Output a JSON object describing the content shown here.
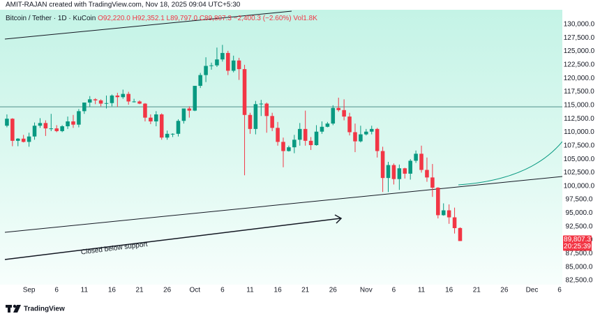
{
  "header": {
    "credit": "AMIT-RAJAN created with TradingView.com, Nov 18, 2025 09:04 UTC+5:30",
    "symbol": "Bitcoin / Tether · 1D · KuCoin",
    "ohlc": [
      "O92,220.0",
      "H92,352.1",
      "L89,797.0",
      "C89,807.3",
      "−2,400.3 (−2.60%)"
    ],
    "volume": "Vol1.8K"
  },
  "chart_data": {
    "type": "candlestick",
    "up_color": "#089981",
    "down_color": "#f23645",
    "x": [
      "2025-08-28",
      "2025-08-29",
      "2025-08-30",
      "2025-08-31",
      "2025-09-01",
      "2025-09-02",
      "2025-09-03",
      "2025-09-04",
      "2025-09-05",
      "2025-09-06",
      "2025-09-07",
      "2025-09-08",
      "2025-09-09",
      "2025-09-10",
      "2025-09-11",
      "2025-09-12",
      "2025-09-13",
      "2025-09-14",
      "2025-09-15",
      "2025-09-16",
      "2025-09-17",
      "2025-09-18",
      "2025-09-19",
      "2025-09-20",
      "2025-09-21",
      "2025-09-22",
      "2025-09-23",
      "2025-09-24",
      "2025-09-25",
      "2025-09-26",
      "2025-09-27",
      "2025-09-28",
      "2025-09-29",
      "2025-09-30",
      "2025-10-01",
      "2025-10-02",
      "2025-10-03",
      "2025-10-04",
      "2025-10-05",
      "2025-10-06",
      "2025-10-07",
      "2025-10-08",
      "2025-10-09",
      "2025-10-10",
      "2025-10-11",
      "2025-10-12",
      "2025-10-13",
      "2025-10-14",
      "2025-10-15",
      "2025-10-16",
      "2025-10-17",
      "2025-10-18",
      "2025-10-19",
      "2025-10-20",
      "2025-10-21",
      "2025-10-22",
      "2025-10-23",
      "2025-10-24",
      "2025-10-25",
      "2025-10-26",
      "2025-10-27",
      "2025-10-28",
      "2025-10-29",
      "2025-10-30",
      "2025-10-31",
      "2025-11-01",
      "2025-11-02",
      "2025-11-03",
      "2025-11-04",
      "2025-11-05",
      "2025-11-06",
      "2025-11-07",
      "2025-11-08",
      "2025-11-09",
      "2025-11-10",
      "2025-11-11",
      "2025-11-12",
      "2025-11-13",
      "2025-11-14",
      "2025-11-15",
      "2025-11-16",
      "2025-11-17",
      "2025-11-18"
    ],
    "open": [
      111200,
      112500,
      108400,
      108800,
      108200,
      109200,
      111200,
      111700,
      110700,
      110700,
      110200,
      111100,
      112000,
      111400,
      113900,
      115500,
      116100,
      115900,
      115300,
      115400,
      116800,
      116500,
      117100,
      115700,
      115700,
      115300,
      112700,
      112000,
      113300,
      109000,
      109700,
      109700,
      112100,
      114400,
      114000,
      118600,
      120600,
      122300,
      122400,
      123500,
      124700,
      121400,
      123300,
      121700,
      113200,
      110600,
      115200,
      115300,
      113000,
      110800,
      108200,
      106500,
      107200,
      108600,
      110600,
      108400,
      107600,
      110100,
      111000,
      111600,
      114500,
      114100,
      112900,
      110000,
      108300,
      109600,
      110100,
      110600,
      106500,
      101500,
      103900,
      101300,
      103300,
      102300,
      104700,
      106000,
      103000,
      101600,
      99700,
      94600,
      95500,
      94200,
      92220.0
    ],
    "high": [
      113300,
      112600,
      108900,
      109500,
      109900,
      111800,
      112600,
      112200,
      113400,
      111300,
      111300,
      112900,
      113200,
      114300,
      115500,
      116700,
      116300,
      116100,
      116800,
      117000,
      117300,
      117900,
      117500,
      116200,
      115900,
      115400,
      113300,
      113900,
      113500,
      110300,
      109800,
      112400,
      114400,
      114800,
      118600,
      121000,
      123900,
      122900,
      125700,
      126200,
      125100,
      124200,
      123800,
      122500,
      113600,
      115800,
      116000,
      115500,
      113600,
      111900,
      109000,
      107500,
      109500,
      111700,
      114000,
      109100,
      111300,
      112000,
      111900,
      115000,
      116400,
      116100,
      113600,
      111600,
      111200,
      110600,
      111200,
      110800,
      107300,
      104500,
      104200,
      104000,
      103400,
      105000,
      106600,
      107500,
      105300,
      104100,
      99800,
      96800,
      96600,
      96000,
      92352.1
    ],
    "low": [
      110900,
      107400,
      107400,
      108100,
      107300,
      108600,
      110800,
      109300,
      110200,
      110000,
      110000,
      110600,
      110800,
      110900,
      113400,
      114700,
      115200,
      114800,
      114400,
      114800,
      114700,
      116200,
      115100,
      115500,
      115200,
      112000,
      111500,
      111100,
      108600,
      108600,
      109100,
      109200,
      111600,
      112700,
      113900,
      118200,
      119300,
      121600,
      122100,
      123100,
      120600,
      121100,
      119700,
      102000,
      109700,
      109600,
      113000,
      109900,
      110200,
      107500,
      103500,
      106400,
      106100,
      107500,
      107500,
      106700,
      107500,
      109700,
      110900,
      111300,
      113800,
      112200,
      109400,
      106300,
      108100,
      109400,
      109600,
      105300,
      98900,
      98900,
      100300,
      99300,
      101400,
      101200,
      104300,
      102500,
      100800,
      98000,
      94000,
      94500,
      93000,
      91200,
      89797.0
    ],
    "close": [
      112500,
      108400,
      108800,
      108200,
      109200,
      111200,
      111700,
      110700,
      110700,
      110200,
      111100,
      112000,
      111400,
      113900,
      115500,
      116100,
      115900,
      115300,
      115400,
      116800,
      116500,
      117100,
      115700,
      115700,
      115300,
      112700,
      112000,
      113300,
      109000,
      109700,
      109700,
      112100,
      114400,
      114000,
      118600,
      120600,
      122300,
      122400,
      123500,
      124700,
      121400,
      123300,
      121700,
      113200,
      110600,
      115200,
      115300,
      113000,
      110800,
      108200,
      106500,
      107200,
      108600,
      110600,
      108400,
      107600,
      110100,
      111000,
      111600,
      114500,
      114100,
      112900,
      110000,
      108300,
      109600,
      110100,
      110600,
      106500,
      101500,
      103900,
      101300,
      103300,
      102300,
      104700,
      106000,
      103000,
      101600,
      99700,
      94600,
      95500,
      94200,
      92200,
      89807.3
    ],
    "xlim": [
      "2025-08-27",
      "2025-12-07"
    ],
    "xticks": [
      {
        "value": "2025-09-01",
        "label": "Sep"
      },
      {
        "value": "2025-09-06",
        "label": "6"
      },
      {
        "value": "2025-09-11",
        "label": "11"
      },
      {
        "value": "2025-09-16",
        "label": "16"
      },
      {
        "value": "2025-09-21",
        "label": "21"
      },
      {
        "value": "2025-09-26",
        "label": "26"
      },
      {
        "value": "2025-10-01",
        "label": "Oct"
      },
      {
        "value": "2025-10-06",
        "label": "6"
      },
      {
        "value": "2025-10-11",
        "label": "11"
      },
      {
        "value": "2025-10-16",
        "label": "16"
      },
      {
        "value": "2025-10-21",
        "label": "21"
      },
      {
        "value": "2025-10-26",
        "label": "26"
      },
      {
        "value": "2025-11-01",
        "label": "Nov"
      },
      {
        "value": "2025-11-06",
        "label": "6"
      },
      {
        "value": "2025-11-11",
        "label": "11"
      },
      {
        "value": "2025-11-16",
        "label": "16"
      },
      {
        "value": "2025-11-21",
        "label": "21"
      },
      {
        "value": "2025-11-26",
        "label": "26"
      },
      {
        "value": "2025-12-01",
        "label": "Dec"
      },
      {
        "value": "2025-12-06",
        "label": "6"
      }
    ],
    "ylim": [
      82000,
      133000
    ],
    "yticks": [
      {
        "value": 82500,
        "label": "82,500.0"
      },
      {
        "value": 85000,
        "label": "85,000.0"
      },
      {
        "value": 87500,
        "label": "87,500.0"
      },
      {
        "value": 90000,
        "label": "90,000.0"
      },
      {
        "value": 92500,
        "label": "92,500.0"
      },
      {
        "value": 95000,
        "label": "95,000.0"
      },
      {
        "value": 97500,
        "label": "97,500.0"
      },
      {
        "value": 100000,
        "label": "100,000.0"
      },
      {
        "value": 102500,
        "label": "102,500.0"
      },
      {
        "value": 105000,
        "label": "105,000.0"
      },
      {
        "value": 107500,
        "label": "107,500.0"
      },
      {
        "value": 110000,
        "label": "110,000.0"
      },
      {
        "value": 112500,
        "label": "112,500.0"
      },
      {
        "value": 115000,
        "label": "115,000.0"
      },
      {
        "value": 117500,
        "label": "117,500.0"
      },
      {
        "value": 120000,
        "label": "120,000.0"
      },
      {
        "value": 122500,
        "label": "122,500.0"
      },
      {
        "value": 125000,
        "label": "125,000.0"
      },
      {
        "value": 127500,
        "label": "127,500.0"
      },
      {
        "value": 130000,
        "label": "130,000.0"
      }
    ],
    "horizontal_line": 114700,
    "last_price": {
      "value": 89807.3,
      "label": "89,807.3"
    },
    "countdown": "20:25:39",
    "annotation": "Closed below support"
  },
  "footer": {
    "brand": "TradingView"
  }
}
